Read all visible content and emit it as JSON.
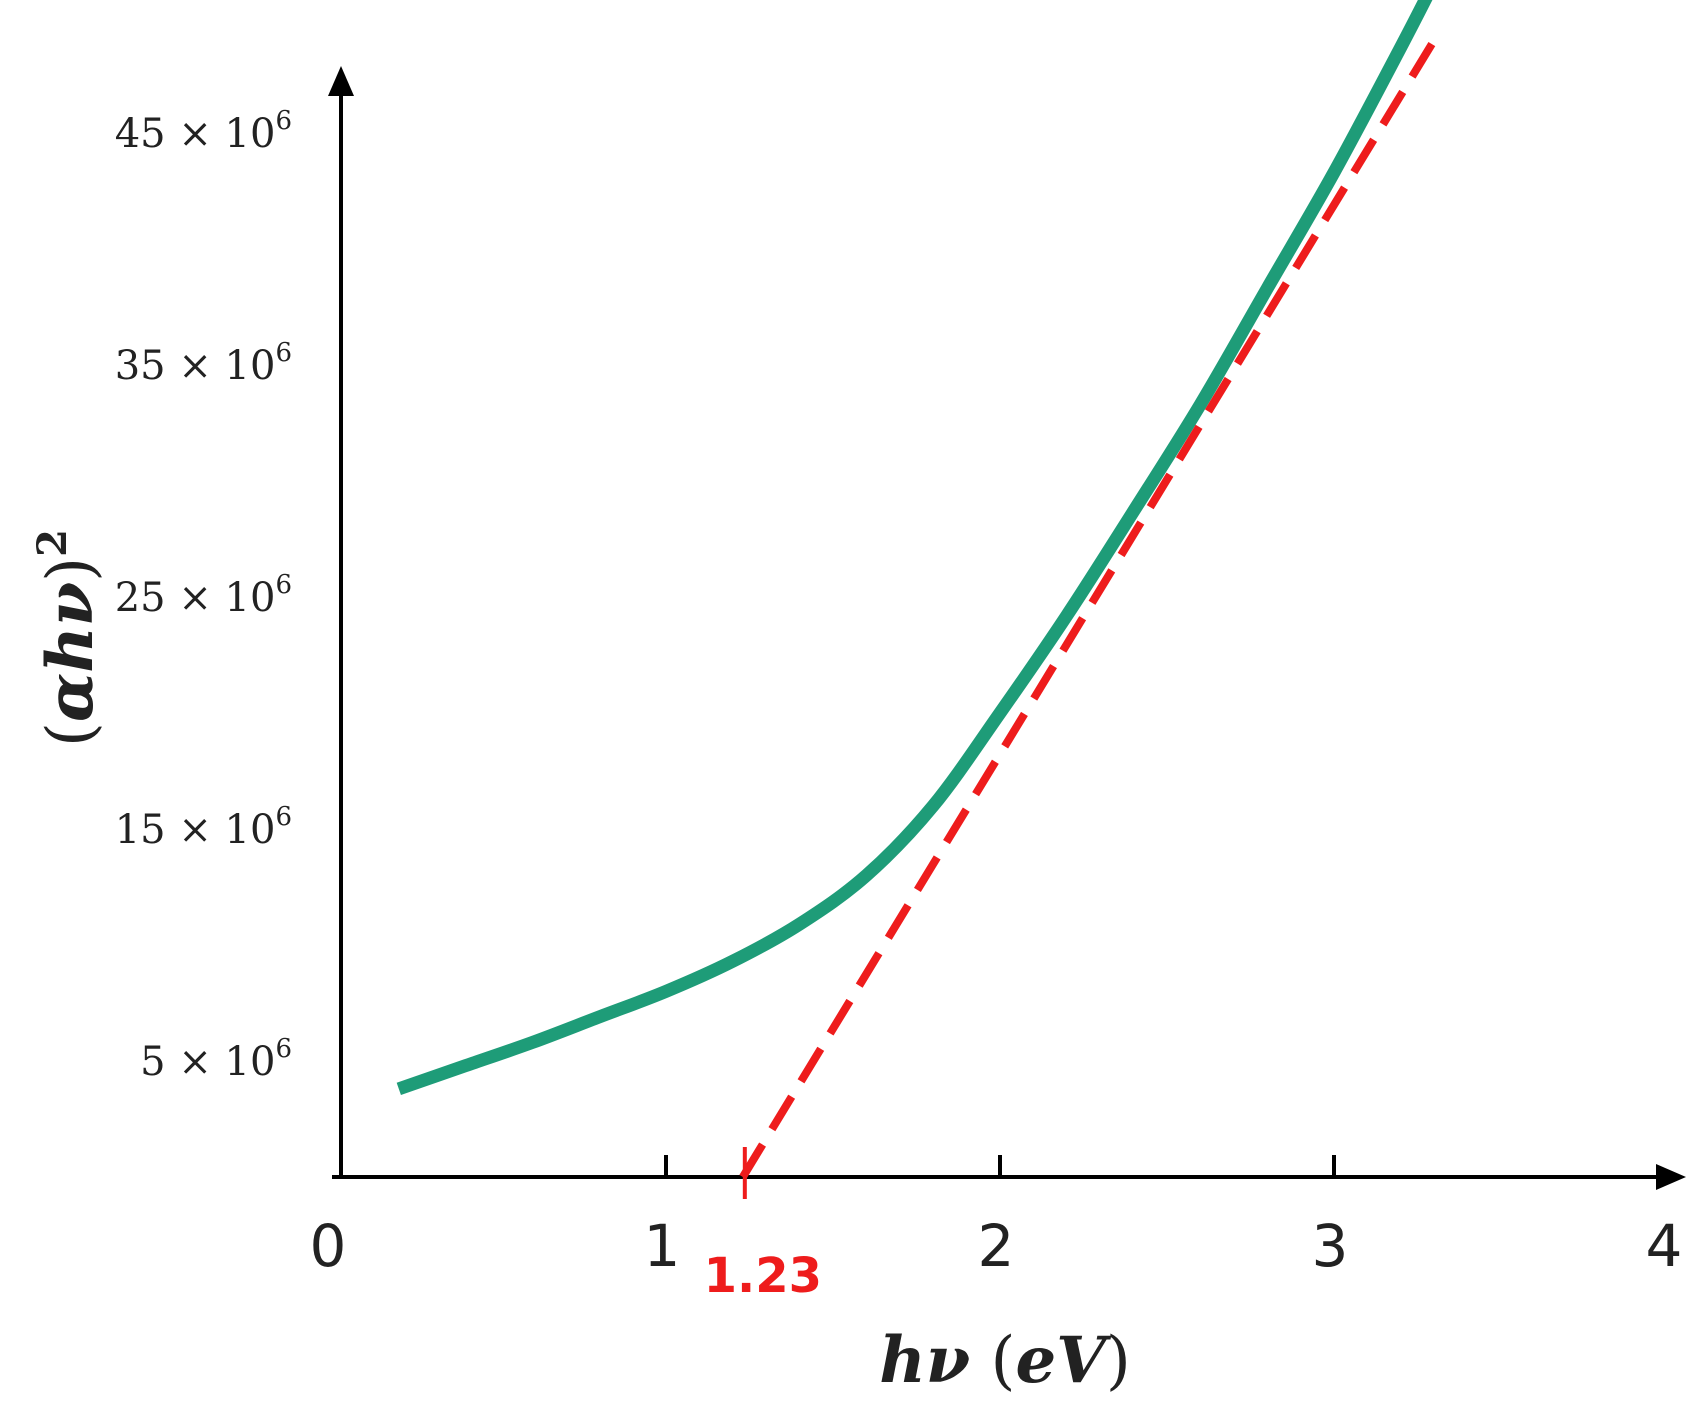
{
  "chart_data": {
    "type": "line",
    "xlabel": {
      "main": "hν",
      "unit_open": " (",
      "unit": "eV",
      "unit_close": ")"
    },
    "ylabel": {
      "open": "(",
      "main": "αhν",
      "close": ")",
      "sup": "2"
    },
    "xlim": [
      0,
      4
    ],
    "ylim": [
      0,
      50000000
    ],
    "x_ticks": [
      0,
      1,
      2,
      3,
      4
    ],
    "x_tick_labels": [
      "0",
      "1",
      "2",
      "3",
      "4"
    ],
    "y_ticks": [
      5000000,
      15000000,
      25000000,
      35000000,
      45000000
    ],
    "y_tick_labels": [
      {
        "base": "5 × 10",
        "exp": "6"
      },
      {
        "base": "15 × 10",
        "exp": "6"
      },
      {
        "base": "25 × 10",
        "exp": "6"
      },
      {
        "base": "35 × 10",
        "exp": "6"
      },
      {
        "base": "45 × 10",
        "exp": "6"
      }
    ],
    "series": [
      {
        "style": "solid",
        "color": "#1e9c78",
        "x": [
          0.2,
          0.4,
          0.6,
          0.8,
          1.0,
          1.2,
          1.4,
          1.6,
          1.8,
          2.0,
          2.2,
          2.4,
          2.6,
          2.8,
          3.0,
          3.2,
          3.3
        ],
        "y": [
          3800000,
          4800000,
          5800000,
          6900000,
          8000000,
          9300000,
          10900000,
          13000000,
          16000000,
          20000000,
          24200000,
          28700000,
          33300000,
          38300000,
          43300000,
          48700000,
          51500000
        ]
      },
      {
        "style": "dashed",
        "color": "#ee1c1c",
        "x": [
          1.23,
          3.3
        ],
        "y": [
          0,
          49000000
        ]
      }
    ],
    "annotations": [
      {
        "text": "1.23",
        "x": 1.23,
        "color": "#ee1c1c"
      }
    ],
    "grid": false,
    "legend": "none"
  }
}
